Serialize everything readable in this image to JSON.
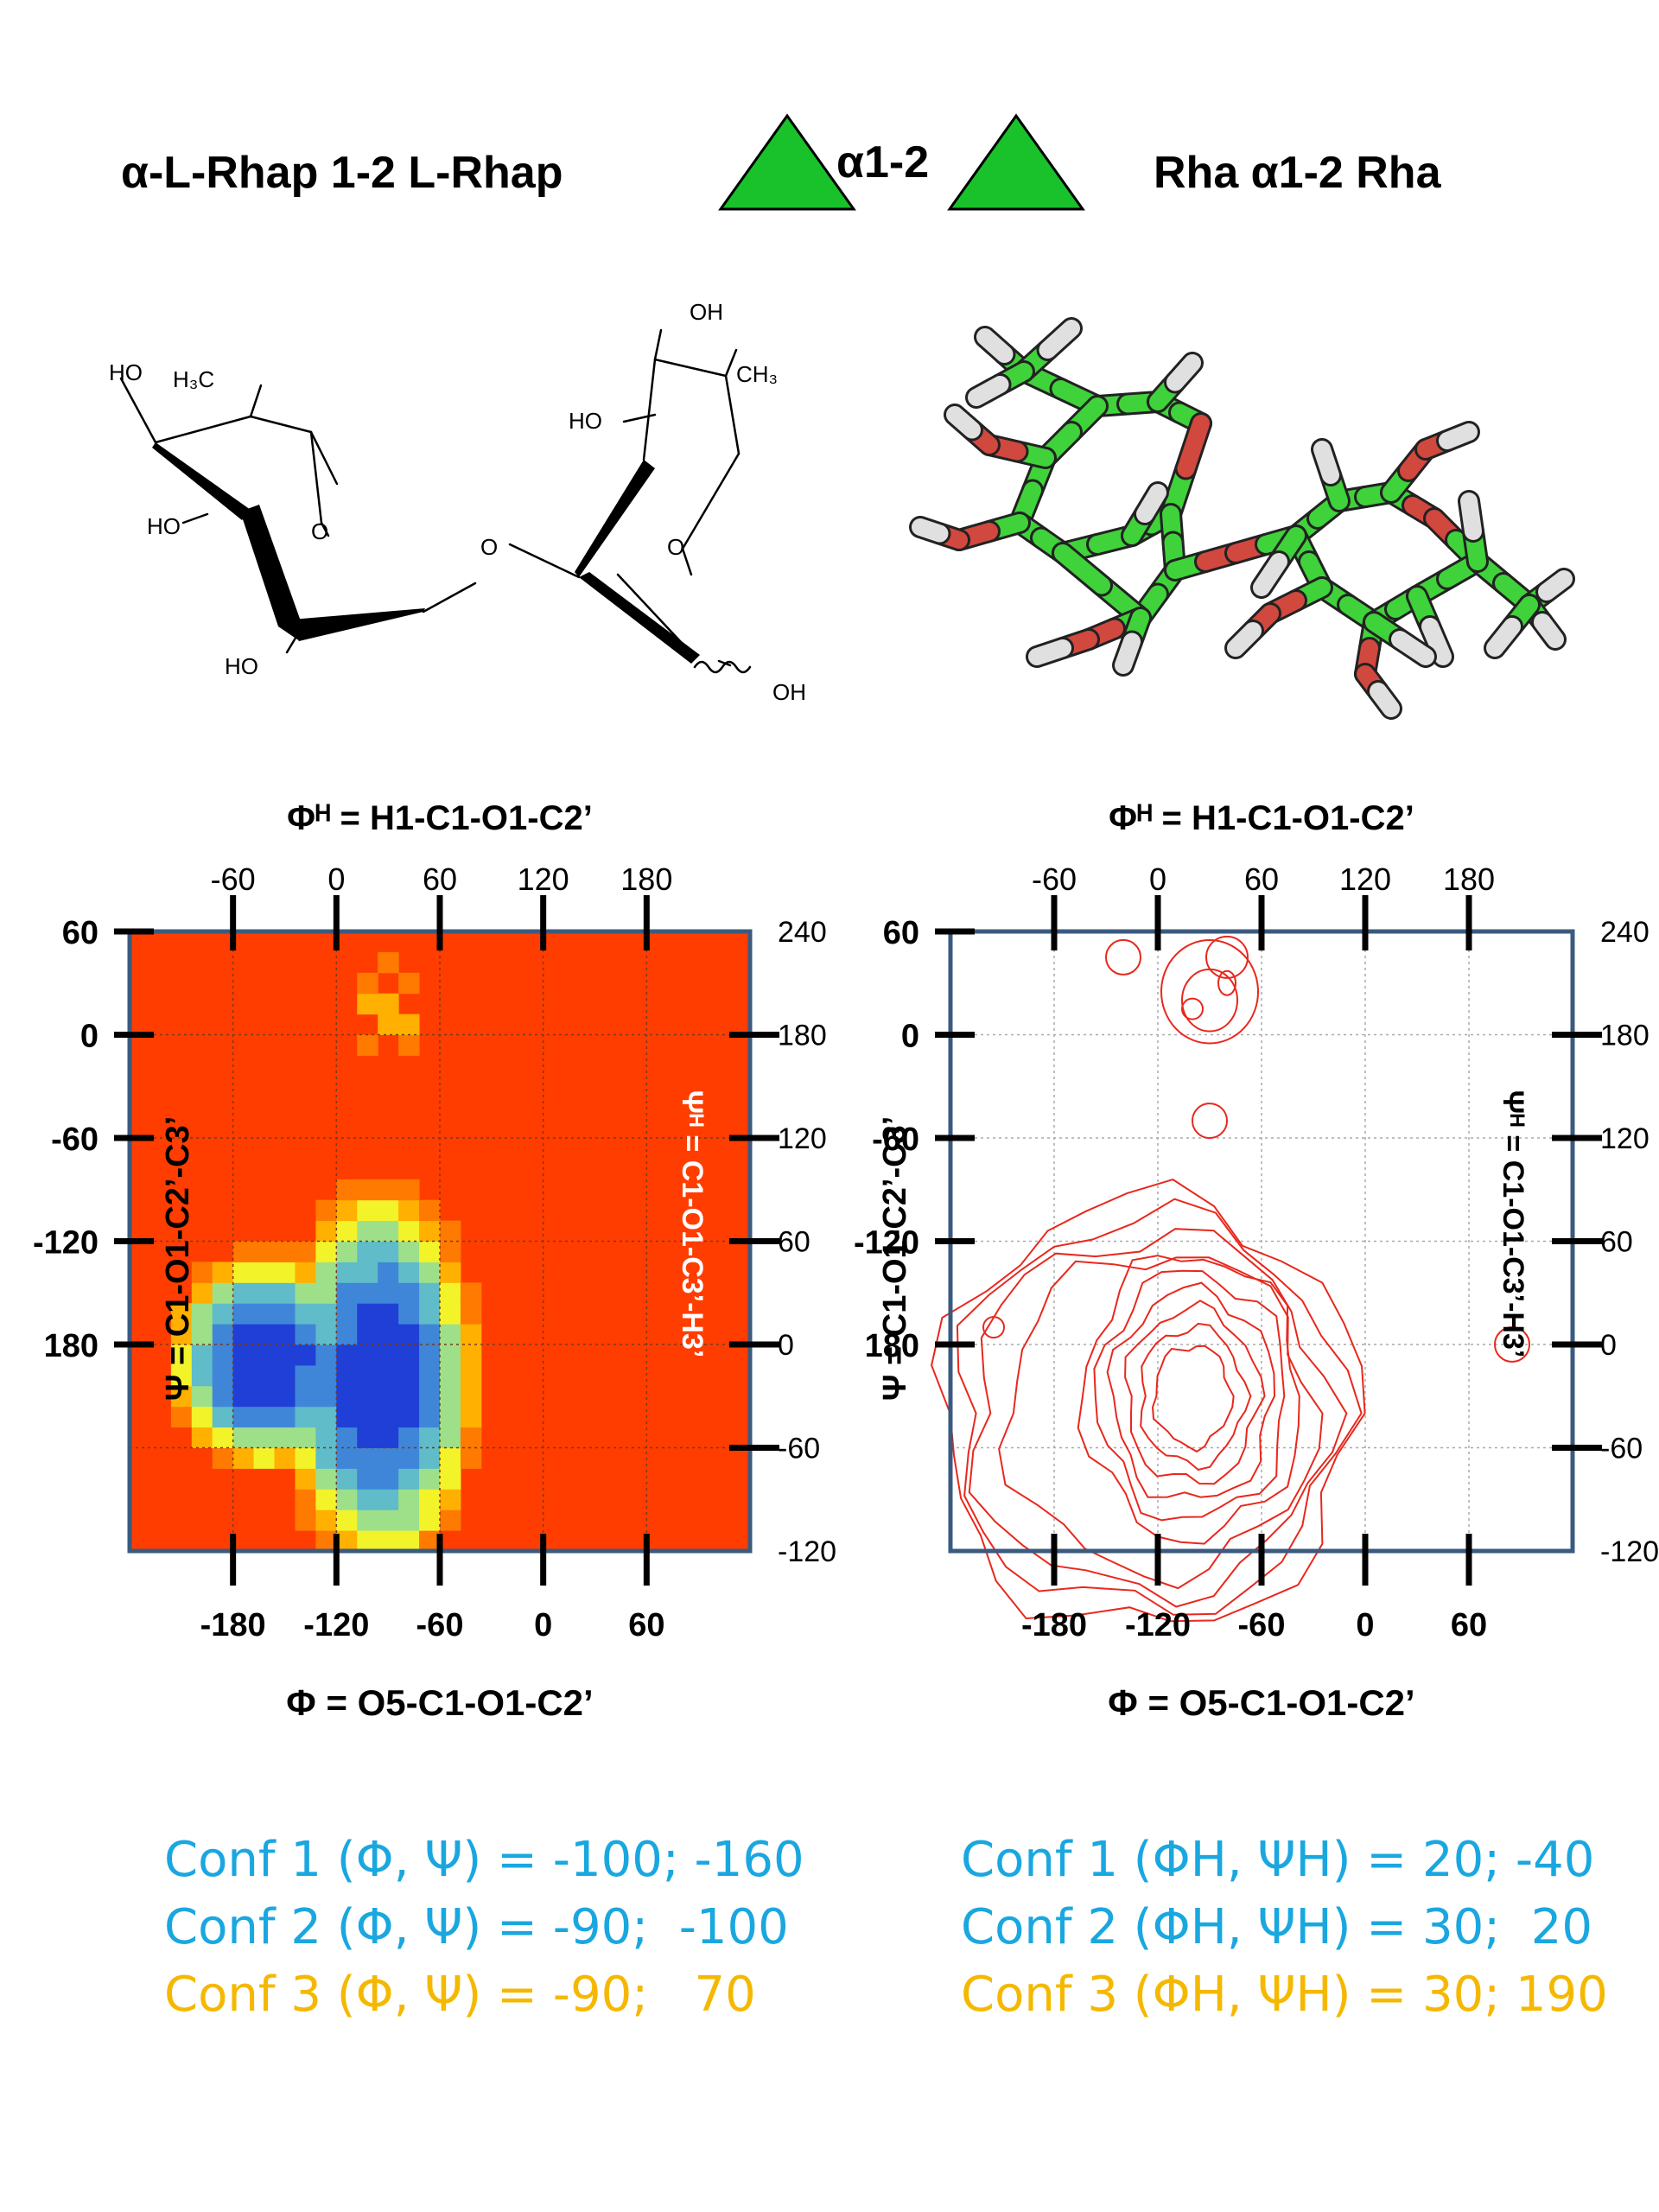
{
  "header": {
    "left_name": "α-L-Rhap 1-2 L-Rhap",
    "linkage": "α1-2",
    "right_name": "Rha α1-2 Rha",
    "symbol_color": "#19c12a"
  },
  "structure_2d": {
    "labels": {
      "HO_a": "HO",
      "H3C": "H₃C",
      "HO_b": "HO",
      "O_ring1": "O",
      "HO_c": "HO",
      "O_link": "O",
      "OH_top": "OH",
      "CH3": "CH₃",
      "HO_d": "HO",
      "O_ring2": "O",
      "OH_anomeric": "OH"
    }
  },
  "structure_3d": {
    "colors": {
      "carbon": "#3fd23a",
      "oxygen": "#d1483f",
      "hydrogen": "#e0e0e0"
    }
  },
  "plots": [
    {
      "type": "heatmap",
      "top_title": "Φᴴ = H1-C1-O1-C2’",
      "bottom_title": "Φ = O5-C1-O1-C2’",
      "left_title": "Ψ = C1-O1-C2’-C3’",
      "right_title": "Ψᴴ = C1-O1-C3’-H3’",
      "right_title_color": "#ffffff",
      "background_color": "#ff3d00"
    },
    {
      "type": "contour",
      "top_title": "Φᴴ = H1-C1-O1-C2’",
      "bottom_title": "Φ = O5-C1-O1-C2’",
      "left_title": "Ψ = C1-O1-C2’-C3’",
      "right_title": "Ψᴴ = C1-O1-C3’-H3’",
      "right_title_color": "#000000",
      "line_color": "#e8281d"
    }
  ],
  "chart_data": [
    {
      "type": "heatmap",
      "x_bottom_ticks": [
        -180,
        -120,
        -60,
        0,
        60
      ],
      "x_bottom_range": [
        -240,
        120
      ],
      "x_top_ticks": [
        -60,
        0,
        60,
        120,
        180
      ],
      "x_top_range": [
        -120,
        240
      ],
      "y_left_ticks": [
        60,
        0,
        -60,
        -120,
        180
      ],
      "y_left_range_note": "wraps: 60 at top to 180 at bottom",
      "y_right_ticks": [
        240,
        180,
        120,
        60,
        0,
        -60,
        -120
      ],
      "y_right_range": [
        -120,
        240
      ],
      "minimum_region": {
        "phi": [
          -105,
          -80
        ],
        "psi": [
          -190,
          -130
        ]
      },
      "secondary_region": {
        "phi": [
          -100,
          -70
        ],
        "psi": [
          60,
          80
        ]
      },
      "colormap": [
        "#1f3fd6",
        "#3f86d8",
        "#5fbcc8",
        "#9ee08a",
        "#f3f32a",
        "#ffb000",
        "#ff7a00",
        "#ff3d00"
      ]
    },
    {
      "type": "contour",
      "x_bottom_ticks": [
        -180,
        -120,
        -60,
        0,
        60
      ],
      "x_top_ticks": [
        -60,
        0,
        60,
        120,
        180
      ],
      "y_left_ticks": [
        60,
        0,
        -60,
        -120,
        180
      ],
      "y_right_ticks": [
        240,
        180,
        120,
        60,
        0,
        -60,
        -120
      ],
      "contour_levels": 10,
      "minimum_region": {
        "phi": [
          -100,
          -80
        ],
        "psi": [
          -180,
          -110
        ]
      }
    }
  ],
  "confs": [
    {
      "left": {
        "label": "Conf 1 (Φ, Ψ) =",
        "value": "-100; -160"
      },
      "right": {
        "label": "Conf 1 (ΦH, ΨH) =",
        "value": "20; -40"
      },
      "color": "#1aa7e0"
    },
    {
      "left": {
        "label": "Conf 2 (Φ, Ψ) =",
        "value": "-90;  -100"
      },
      "right": {
        "label": "Conf 2 (ΦH, ΨH) =",
        "value": "30;  20"
      },
      "color": "#1aa7e0"
    },
    {
      "left": {
        "label": "Conf 3 (Φ, Ψ) =",
        "value": "-90;   70"
      },
      "right": {
        "label": "Conf 3 (ΦH, ΨH) =",
        "value": "30; 190"
      },
      "color": "#f5b800"
    }
  ]
}
